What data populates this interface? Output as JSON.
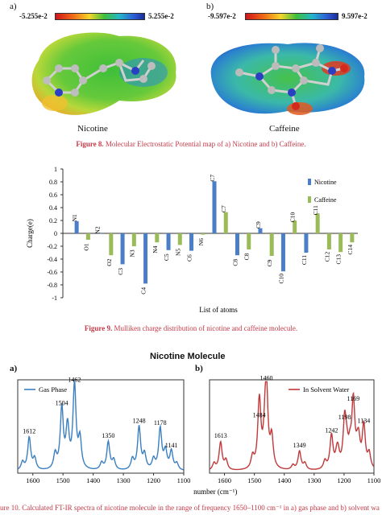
{
  "figure8": {
    "panel_a": "a)",
    "panel_b": "b)",
    "scale_a_min": "-5.255e-2",
    "scale_a_max": "5.255e-2",
    "scale_b_min": "-9.597e-2",
    "scale_b_max": "9.597e-2",
    "mol_a": "Nicotine",
    "mol_b": "Caffeine",
    "caption_label": "Figure 8.",
    "caption_text": " Molecular Electrostatic Potential map of a) Nicotine and b) Caffeine."
  },
  "figure9": {
    "caption_label": "Figure 9.",
    "caption_text": " Mulliken charge distribution of nicotine and caffeine molecule."
  },
  "figure10": {
    "title": "Nicotine Molecule",
    "panel_a": "a)",
    "panel_b": "b)",
    "caption_text": "ure 10. Calculated FT-IR spectra of nicotine molecule in the range of frequency 1650–1100 cm⁻¹ in a) gas phase and b) solvent wa"
  },
  "chart_data": [
    {
      "type": "bar",
      "ylabel": "Charge(e)",
      "xlabel": "List of atoms",
      "ylim": [
        -1,
        1
      ],
      "yticks": [
        "1",
        "0.8",
        "0.6",
        "0.4",
        "0.2",
        "0",
        "-0.2",
        "-0.4",
        "-0.6",
        "-0.8",
        "-1"
      ],
      "legend_position": "top-right",
      "series": [
        {
          "name": "Nicotine",
          "color": "#4a7ec7",
          "points": [
            [
              "N1",
              0.19
            ],
            [
              "N2",
              0.0
            ],
            [
              "C3",
              -0.48
            ],
            [
              "C4",
              -0.78
            ],
            [
              "C5",
              -0.26
            ],
            [
              "C6",
              -0.27
            ],
            [
              "C7",
              0.81
            ],
            [
              "C8",
              -0.34
            ],
            [
              "C9",
              0.08
            ],
            [
              "C10",
              -0.59
            ],
            [
              "C11",
              -0.3
            ]
          ]
        },
        {
          "name": "Caffeine",
          "color": "#9bbb59",
          "points": [
            [
              "O1",
              -0.1
            ],
            [
              "O2",
              -0.34
            ],
            [
              "N3",
              -0.2
            ],
            [
              "N4",
              -0.14
            ],
            [
              "N5",
              -0.18
            ],
            [
              "N6",
              -0.02
            ],
            [
              "C7",
              0.33
            ],
            [
              "C8",
              -0.25
            ],
            [
              "C9",
              -0.35
            ],
            [
              "C10",
              0.2
            ],
            [
              "C11",
              0.31
            ],
            [
              "C12",
              -0.25
            ],
            [
              "C13",
              -0.29
            ],
            [
              "C14",
              -0.14
            ]
          ]
        }
      ],
      "labels": [
        "N1",
        "O1",
        "N2",
        "O2",
        "C3",
        "N3",
        "C4",
        "N4",
        "C5",
        "N5",
        "C6",
        "N6",
        "C7",
        "C7",
        "C8",
        "C8",
        "C9",
        "C9",
        "C10",
        "C10",
        "C11",
        "C11",
        "C12",
        "C13",
        "C14"
      ]
    },
    {
      "type": "line",
      "legend": "Gas Phase",
      "color": "#3a7fc1",
      "xlabel": "",
      "xticks": [
        "1600",
        "1500",
        "1400",
        "1300",
        "1200",
        "1100"
      ],
      "xlim": [
        1650,
        1100
      ],
      "peak_labels": [
        "1612",
        "1504",
        "1462",
        "1350",
        "1248",
        "1178",
        "1141"
      ],
      "peaks": [
        [
          1612,
          0.35
        ],
        [
          1504,
          0.65
        ],
        [
          1462,
          0.9
        ],
        [
          1350,
          0.3
        ],
        [
          1248,
          0.46
        ],
        [
          1178,
          0.44
        ],
        [
          1141,
          0.2
        ]
      ]
    },
    {
      "type": "line",
      "legend": "In Solvent Water",
      "color": "#c0393b",
      "xlabel": "Wave number (cm⁻¹)",
      "xticks": [
        "1600",
        "1500",
        "1400",
        "1300",
        "1200",
        "1100"
      ],
      "xlim": [
        1650,
        1100
      ],
      "peak_labels": [
        "1613",
        "1484",
        "1460",
        "1349",
        "1242",
        "1198",
        "1169",
        "1134"
      ],
      "peaks": [
        [
          1613,
          0.3
        ],
        [
          1484,
          0.52
        ],
        [
          1460,
          0.93
        ],
        [
          1349,
          0.2
        ],
        [
          1242,
          0.36
        ],
        [
          1198,
          0.5
        ],
        [
          1169,
          0.7
        ],
        [
          1134,
          0.46
        ]
      ]
    }
  ]
}
